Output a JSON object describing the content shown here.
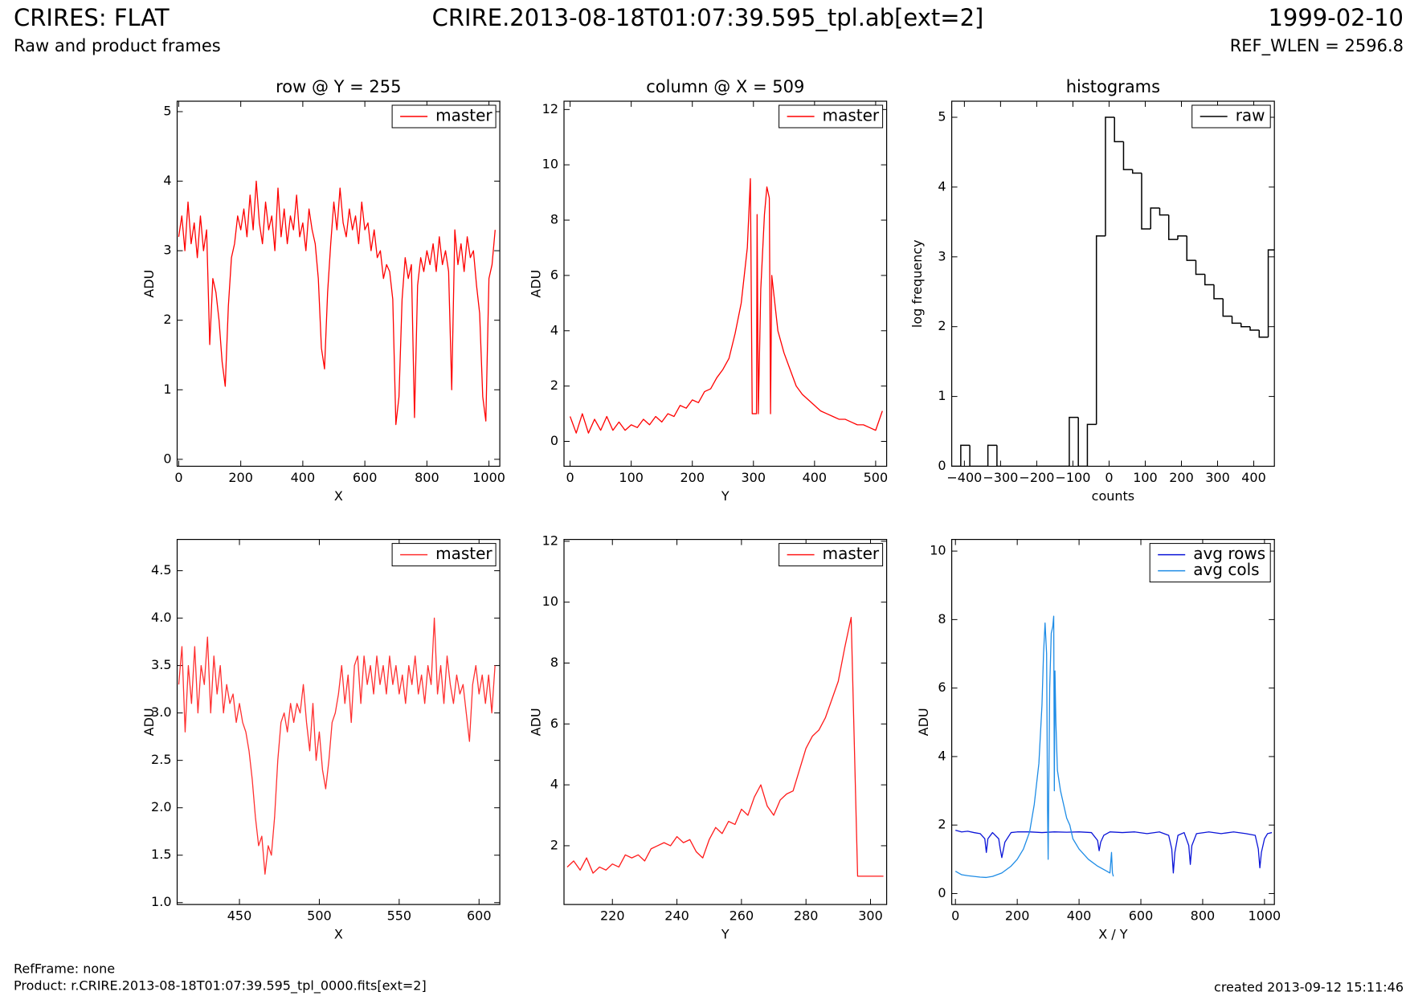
{
  "header": {
    "title": "CRIRES: FLAT",
    "subtitle": "Raw and product frames",
    "file": "CRIRE.2013-08-18T01:07:39.595_tpl.ab[ext=2]",
    "date": "1999-02-10",
    "ref_wlen": "REF_WLEN = 2596.8"
  },
  "footer": {
    "ref_frame": "RefFrame: none",
    "product": "Product: r.CRIRE.2013-08-18T01:07:39.595_tpl_0000.fits[ext=2]",
    "created": "created 2013-09-12 15:11:46"
  },
  "chart_data": [
    {
      "type": "line",
      "title": "row @ Y = 255",
      "xlabel": "X",
      "ylabel": "ADU",
      "legend": "upper right",
      "xlim": [
        -5,
        1035
      ],
      "ylim": [
        -0.1,
        5.15
      ],
      "xticks": [
        0,
        200,
        400,
        600,
        800,
        1000
      ],
      "yticks": [
        0,
        1,
        2,
        3,
        4,
        5
      ],
      "x": [
        0,
        10,
        20,
        30,
        40,
        50,
        60,
        70,
        80,
        90,
        100,
        110,
        120,
        130,
        140,
        150,
        160,
        170,
        180,
        190,
        200,
        210,
        220,
        230,
        240,
        250,
        260,
        270,
        280,
        290,
        300,
        310,
        320,
        330,
        340,
        350,
        360,
        370,
        380,
        390,
        400,
        410,
        420,
        430,
        440,
        450,
        460,
        470,
        480,
        490,
        500,
        510,
        520,
        530,
        540,
        550,
        560,
        570,
        580,
        590,
        600,
        610,
        620,
        630,
        640,
        650,
        660,
        670,
        680,
        690,
        700,
        710,
        720,
        730,
        740,
        750,
        760,
        770,
        780,
        790,
        800,
        810,
        820,
        830,
        840,
        850,
        860,
        870,
        880,
        890,
        900,
        910,
        920,
        930,
        940,
        950,
        960,
        970,
        980,
        990,
        1000,
        1010,
        1020
      ],
      "series": [
        {
          "name": "master",
          "color": "#ff0000",
          "values": [
            3.2,
            3.5,
            3.0,
            3.7,
            3.1,
            3.4,
            2.9,
            3.5,
            3.0,
            3.3,
            1.65,
            2.6,
            2.4,
            2.0,
            1.4,
            1.05,
            2.2,
            2.9,
            3.1,
            3.5,
            3.3,
            3.6,
            3.2,
            3.8,
            3.3,
            4.0,
            3.4,
            3.1,
            3.7,
            3.3,
            3.5,
            3.0,
            3.9,
            3.2,
            3.6,
            3.1,
            3.5,
            3.3,
            3.8,
            3.2,
            3.4,
            3.0,
            3.6,
            3.3,
            3.1,
            2.6,
            1.6,
            1.3,
            2.4,
            3.1,
            3.7,
            3.3,
            3.9,
            3.4,
            3.2,
            3.6,
            3.3,
            3.5,
            3.1,
            3.7,
            3.3,
            3.4,
            3.0,
            3.3,
            2.9,
            3.0,
            2.6,
            2.8,
            2.7,
            2.3,
            0.5,
            0.9,
            2.3,
            2.9,
            2.6,
            2.8,
            0.6,
            2.5,
            2.9,
            2.7,
            3.0,
            2.8,
            3.1,
            2.7,
            3.2,
            2.8,
            3.0,
            2.7,
            1.0,
            3.3,
            2.8,
            3.1,
            2.7,
            3.2,
            2.9,
            3.0,
            2.5,
            2.1,
            0.9,
            0.55,
            2.6,
            2.8,
            3.3
          ]
        }
      ]
    },
    {
      "type": "line",
      "title": "column @ X = 509",
      "xlabel": "Y",
      "ylabel": "ADU",
      "legend": "upper right",
      "xlim": [
        -10,
        518
      ],
      "ylim": [
        -0.9,
        12.3
      ],
      "xticks": [
        0,
        100,
        200,
        300,
        400,
        500
      ],
      "yticks": [
        0,
        2,
        4,
        6,
        8,
        10,
        12
      ],
      "x": [
        0,
        10,
        20,
        30,
        40,
        50,
        60,
        70,
        80,
        90,
        100,
        110,
        120,
        130,
        140,
        150,
        160,
        170,
        180,
        190,
        200,
        210,
        220,
        230,
        240,
        250,
        260,
        270,
        280,
        290,
        295,
        298,
        305,
        306,
        308,
        312,
        318,
        322,
        326,
        328,
        330,
        340,
        350,
        360,
        370,
        380,
        390,
        400,
        410,
        420,
        430,
        440,
        450,
        460,
        470,
        480,
        490,
        500,
        511
      ],
      "series": [
        {
          "name": "master",
          "color": "#ff0000",
          "values": [
            0.9,
            0.3,
            1.0,
            0.3,
            0.8,
            0.4,
            0.9,
            0.4,
            0.7,
            0.4,
            0.6,
            0.5,
            0.8,
            0.6,
            0.9,
            0.7,
            1.0,
            0.9,
            1.3,
            1.2,
            1.5,
            1.4,
            1.8,
            1.9,
            2.3,
            2.6,
            3.0,
            3.9,
            5.0,
            7.0,
            9.5,
            1.0,
            1.0,
            8.2,
            1.0,
            5.5,
            8.2,
            9.2,
            8.8,
            1.0,
            6.0,
            4.0,
            3.2,
            2.6,
            2.0,
            1.7,
            1.5,
            1.3,
            1.1,
            1.0,
            0.9,
            0.8,
            0.8,
            0.7,
            0.6,
            0.6,
            0.5,
            0.4,
            1.1
          ]
        }
      ]
    },
    {
      "type": "histogram",
      "title": "histograms",
      "xlabel": "counts",
      "ylabel": "log frequency",
      "legend": "upper right",
      "xlim": [
        -435,
        457
      ],
      "ylim": [
        0,
        5.23
      ],
      "xticks": [
        {
          "value": -400,
          "label": "−400"
        },
        {
          "value": -300,
          "label": "−300"
        },
        {
          "value": -200,
          "label": "−200"
        },
        {
          "value": -100,
          "label": "−100"
        },
        0,
        100,
        200,
        300,
        400
      ],
      "yticks": [
        0,
        1,
        2,
        3,
        4,
        5
      ],
      "bins": [
        -435,
        -410,
        -385,
        -360,
        -335,
        -310,
        -285,
        -260,
        -235,
        -210,
        -185,
        -160,
        -135,
        -110,
        -85,
        -60,
        -35,
        -10,
        15,
        40,
        65,
        90,
        115,
        140,
        165,
        190,
        215,
        240,
        265,
        290,
        315,
        340,
        365,
        390,
        415,
        440,
        465
      ],
      "series": [
        {
          "name": "raw",
          "color": "#000000",
          "values": [
            0,
            0.3,
            0,
            0,
            0.3,
            0,
            0,
            0,
            0,
            0,
            0,
            0,
            0,
            0.7,
            0,
            0.6,
            3.3,
            5.0,
            4.65,
            4.25,
            4.2,
            3.4,
            3.7,
            3.6,
            3.25,
            3.3,
            2.95,
            2.75,
            2.6,
            2.4,
            2.15,
            2.05,
            2.0,
            1.95,
            1.85,
            3.1
          ]
        }
      ]
    },
    {
      "type": "line",
      "title": null,
      "xlabel": "X",
      "ylabel": "ADU",
      "legend": "upper right",
      "xlim": [
        411,
        613
      ],
      "ylim": [
        0.98,
        4.83
      ],
      "xticks": [
        450,
        500,
        550,
        600
      ],
      "yticks": [
        {
          "value": 1,
          "label": "1.0"
        },
        1.5,
        {
          "value": 2,
          "label": "2.0"
        },
        2.5,
        {
          "value": 3,
          "label": "3.0"
        },
        3.5,
        {
          "value": 4,
          "label": "4.0"
        },
        4.5
      ],
      "x": [
        412,
        414,
        416,
        418,
        420,
        422,
        424,
        426,
        428,
        430,
        432,
        434,
        436,
        438,
        440,
        442,
        444,
        446,
        448,
        450,
        452,
        454,
        456,
        458,
        460,
        462,
        464,
        466,
        468,
        470,
        472,
        474,
        476,
        478,
        480,
        482,
        484,
        486,
        488,
        490,
        492,
        494,
        496,
        498,
        500,
        502,
        504,
        506,
        508,
        510,
        512,
        514,
        516,
        518,
        520,
        522,
        524,
        526,
        528,
        530,
        532,
        534,
        536,
        538,
        540,
        542,
        544,
        546,
        548,
        550,
        552,
        554,
        556,
        558,
        560,
        562,
        564,
        566,
        568,
        570,
        572,
        574,
        576,
        578,
        580,
        582,
        584,
        586,
        588,
        590,
        592,
        594,
        596,
        598,
        600,
        602,
        604,
        606,
        608,
        610
      ],
      "series": [
        {
          "name": "master",
          "color": "#ff3030",
          "values": [
            3.3,
            3.7,
            2.8,
            3.5,
            3.1,
            3.7,
            3.0,
            3.5,
            3.3,
            3.8,
            3.0,
            3.6,
            3.2,
            3.5,
            3.0,
            3.3,
            3.1,
            3.2,
            2.9,
            3.1,
            2.9,
            2.8,
            2.6,
            2.3,
            1.9,
            1.6,
            1.7,
            1.3,
            1.6,
            1.5,
            1.9,
            2.5,
            2.9,
            3.0,
            2.8,
            3.1,
            2.9,
            3.1,
            3.0,
            3.3,
            2.9,
            2.6,
            3.1,
            2.5,
            2.8,
            2.4,
            2.2,
            2.5,
            2.9,
            3.0,
            3.2,
            3.5,
            3.1,
            3.4,
            2.9,
            3.5,
            3.6,
            3.1,
            3.6,
            3.3,
            3.5,
            3.2,
            3.6,
            3.3,
            3.5,
            3.2,
            3.6,
            3.3,
            3.5,
            3.2,
            3.4,
            3.1,
            3.5,
            3.3,
            3.6,
            3.2,
            3.4,
            3.1,
            3.5,
            3.3,
            4.0,
            3.2,
            3.5,
            3.1,
            3.6,
            3.3,
            3.1,
            3.4,
            3.2,
            3.3,
            3.0,
            2.7,
            3.3,
            3.5,
            3.2,
            3.4,
            3.1,
            3.4,
            3.0,
            3.5
          ]
        }
      ]
    },
    {
      "type": "line",
      "title": null,
      "xlabel": "Y",
      "ylabel": "ADU",
      "legend": "upper right",
      "xlim": [
        205,
        305
      ],
      "ylim": [
        0.07,
        12.06
      ],
      "xticks": [
        220,
        240,
        260,
        280,
        300
      ],
      "yticks": [
        2,
        4,
        6,
        8,
        10,
        12
      ],
      "x": [
        206,
        208,
        210,
        212,
        214,
        216,
        218,
        220,
        222,
        224,
        226,
        228,
        230,
        232,
        234,
        236,
        238,
        240,
        242,
        244,
        246,
        248,
        250,
        252,
        254,
        256,
        258,
        260,
        262,
        264,
        266,
        268,
        270,
        272,
        274,
        276,
        278,
        280,
        282,
        284,
        286,
        288,
        290,
        292,
        294,
        296,
        298,
        300,
        302,
        304
      ],
      "series": [
        {
          "name": "master",
          "color": "#ff1a1a",
          "values": [
            1.3,
            1.5,
            1.2,
            1.6,
            1.1,
            1.3,
            1.2,
            1.4,
            1.3,
            1.7,
            1.6,
            1.7,
            1.5,
            1.9,
            2.0,
            2.1,
            2.0,
            2.3,
            2.1,
            2.2,
            1.8,
            1.6,
            2.2,
            2.6,
            2.4,
            2.8,
            2.7,
            3.2,
            3.0,
            3.6,
            4.0,
            3.3,
            3.0,
            3.5,
            3.7,
            3.8,
            4.5,
            5.2,
            5.6,
            5.8,
            6.2,
            6.8,
            7.4,
            8.5,
            9.5,
            1.0,
            1.0,
            1.0,
            1.0,
            1.0
          ]
        }
      ]
    },
    {
      "type": "line",
      "title": null,
      "xlabel": "X / Y",
      "ylabel": "ADU",
      "legend": "upper right",
      "xlim": [
        -12,
        1032
      ],
      "ylim": [
        -0.32,
        10.34
      ],
      "xticks": [
        0,
        200,
        400,
        600,
        800,
        1000
      ],
      "yticks": [
        0,
        2,
        4,
        6,
        8,
        10
      ],
      "series": [
        {
          "name": "avg rows",
          "color": "#0a14d8",
          "x": [
            0,
            20,
            40,
            60,
            80,
            95,
            100,
            105,
            120,
            140,
            145,
            150,
            160,
            180,
            200,
            240,
            280,
            320,
            360,
            400,
            440,
            460,
            465,
            470,
            480,
            500,
            540,
            580,
            620,
            660,
            690,
            700,
            705,
            710,
            720,
            740,
            755,
            760,
            765,
            780,
            820,
            860,
            900,
            940,
            970,
            980,
            985,
            990,
            1000,
            1010,
            1024
          ],
          "values": [
            1.85,
            1.8,
            1.82,
            1.78,
            1.75,
            1.6,
            1.2,
            1.6,
            1.78,
            1.6,
            1.3,
            1.05,
            1.5,
            1.78,
            1.8,
            1.8,
            1.78,
            1.8,
            1.79,
            1.8,
            1.78,
            1.55,
            1.25,
            1.5,
            1.7,
            1.8,
            1.78,
            1.8,
            1.75,
            1.8,
            1.7,
            1.3,
            0.6,
            1.2,
            1.7,
            1.78,
            1.4,
            0.85,
            1.4,
            1.75,
            1.8,
            1.75,
            1.8,
            1.75,
            1.7,
            1.3,
            0.75,
            1.2,
            1.6,
            1.75,
            1.78
          ]
        },
        {
          "name": "avg cols",
          "color": "#1e8ce6",
          "x": [
            0,
            20,
            40,
            60,
            80,
            100,
            120,
            150,
            180,
            200,
            220,
            240,
            255,
            270,
            280,
            285,
            290,
            295,
            298,
            300,
            302,
            305,
            310,
            315,
            318,
            320,
            322,
            325,
            330,
            340,
            350,
            360,
            370,
            380,
            400,
            430,
            460,
            490,
            500,
            505,
            508,
            511
          ],
          "values": [
            0.65,
            0.55,
            0.52,
            0.5,
            0.48,
            0.47,
            0.5,
            0.6,
            0.8,
            1.0,
            1.3,
            1.8,
            2.6,
            3.8,
            5.5,
            7.0,
            7.9,
            7.0,
            2.5,
            1.0,
            3.0,
            6.0,
            7.6,
            7.8,
            8.1,
            3.0,
            6.5,
            5.0,
            3.6,
            3.0,
            2.6,
            2.2,
            2.0,
            1.6,
            1.3,
            1.0,
            0.8,
            0.65,
            0.6,
            1.2,
            0.6,
            0.5
          ]
        }
      ]
    }
  ]
}
